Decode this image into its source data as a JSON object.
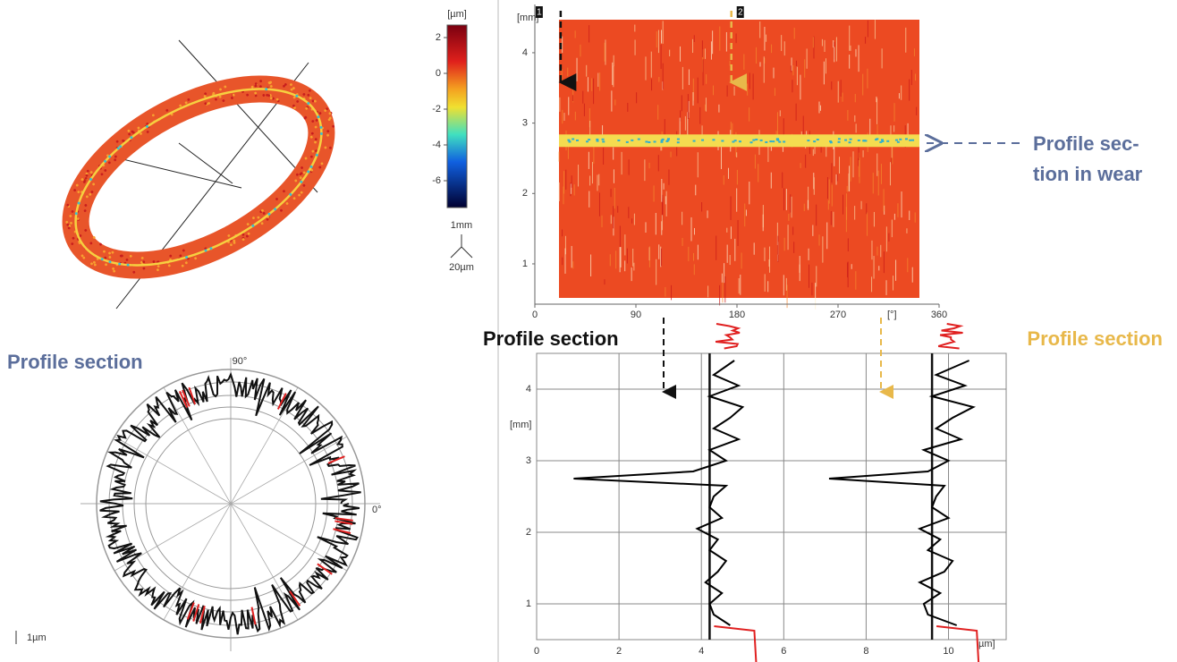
{
  "colorbar": {
    "unit": "[µm]",
    "lim": [
      2.7,
      -7.5
    ],
    "ticks": [
      2,
      0,
      -2,
      -4,
      -6
    ],
    "scale_length": "1mm",
    "scale_height": "20µm"
  },
  "map": {
    "y_unit": "[mm]",
    "x_unit": "[°]",
    "xlim": [
      0,
      360
    ],
    "ylim": [
      0.5,
      4.5
    ],
    "xticks": [
      0,
      90,
      180,
      270,
      360
    ],
    "yticks": [
      1,
      2,
      3,
      4
    ],
    "sections": [
      {
        "label": "1",
        "angle": 23
      },
      {
        "label": "2",
        "angle": 175
      }
    ],
    "wear_height": 2.75,
    "wear_label": [
      "Profile sec-",
      "tion in wear"
    ]
  },
  "profile_plot": {
    "title_left": "Profile section",
    "title_right": "Profile section",
    "x_unit": "µm]",
    "y_unit": "[mm]",
    "xlim": [
      0,
      11.4
    ],
    "ylim": [
      0.5,
      4.5
    ],
    "xticks": [
      0,
      2,
      4,
      6,
      8,
      10
    ],
    "yticks": [
      1,
      2,
      3,
      4
    ],
    "heights": [
      0.7,
      0.85,
      1.0,
      1.15,
      1.3,
      1.45,
      1.6,
      1.75,
      1.9,
      2.05,
      2.2,
      2.35,
      2.5,
      2.65,
      2.75,
      2.85,
      3.0,
      3.15,
      3.3,
      3.45,
      3.6,
      3.75,
      3.9,
      4.05,
      4.2,
      4.4
    ],
    "profiles": [
      {
        "color": "#000000",
        "reference": 4.2,
        "values": [
          4.7,
          4.3,
          4.2,
          4.5,
          4.1,
          4.4,
          4.6,
          4.2,
          4.4,
          3.9,
          4.5,
          4.2,
          4.3,
          4.6,
          0.9,
          3.8,
          4.6,
          4.2,
          4.9,
          4.3,
          4.7,
          5.0,
          4.2,
          4.9,
          4.3,
          4.8
        ]
      },
      {
        "color": "#000000",
        "reference": 9.6,
        "values": [
          10.2,
          9.5,
          9.4,
          9.8,
          9.3,
          9.9,
          10.1,
          9.5,
          9.8,
          9.3,
          10.0,
          9.6,
          9.7,
          9.9,
          7.1,
          9.5,
          10.0,
          9.4,
          10.3,
          9.7,
          10.1,
          10.6,
          9.6,
          10.4,
          9.7,
          10.5
        ]
      }
    ]
  },
  "polar": {
    "title": "Profile section",
    "top_label": "90°",
    "right_label": "0°",
    "scale": "1µm"
  }
}
